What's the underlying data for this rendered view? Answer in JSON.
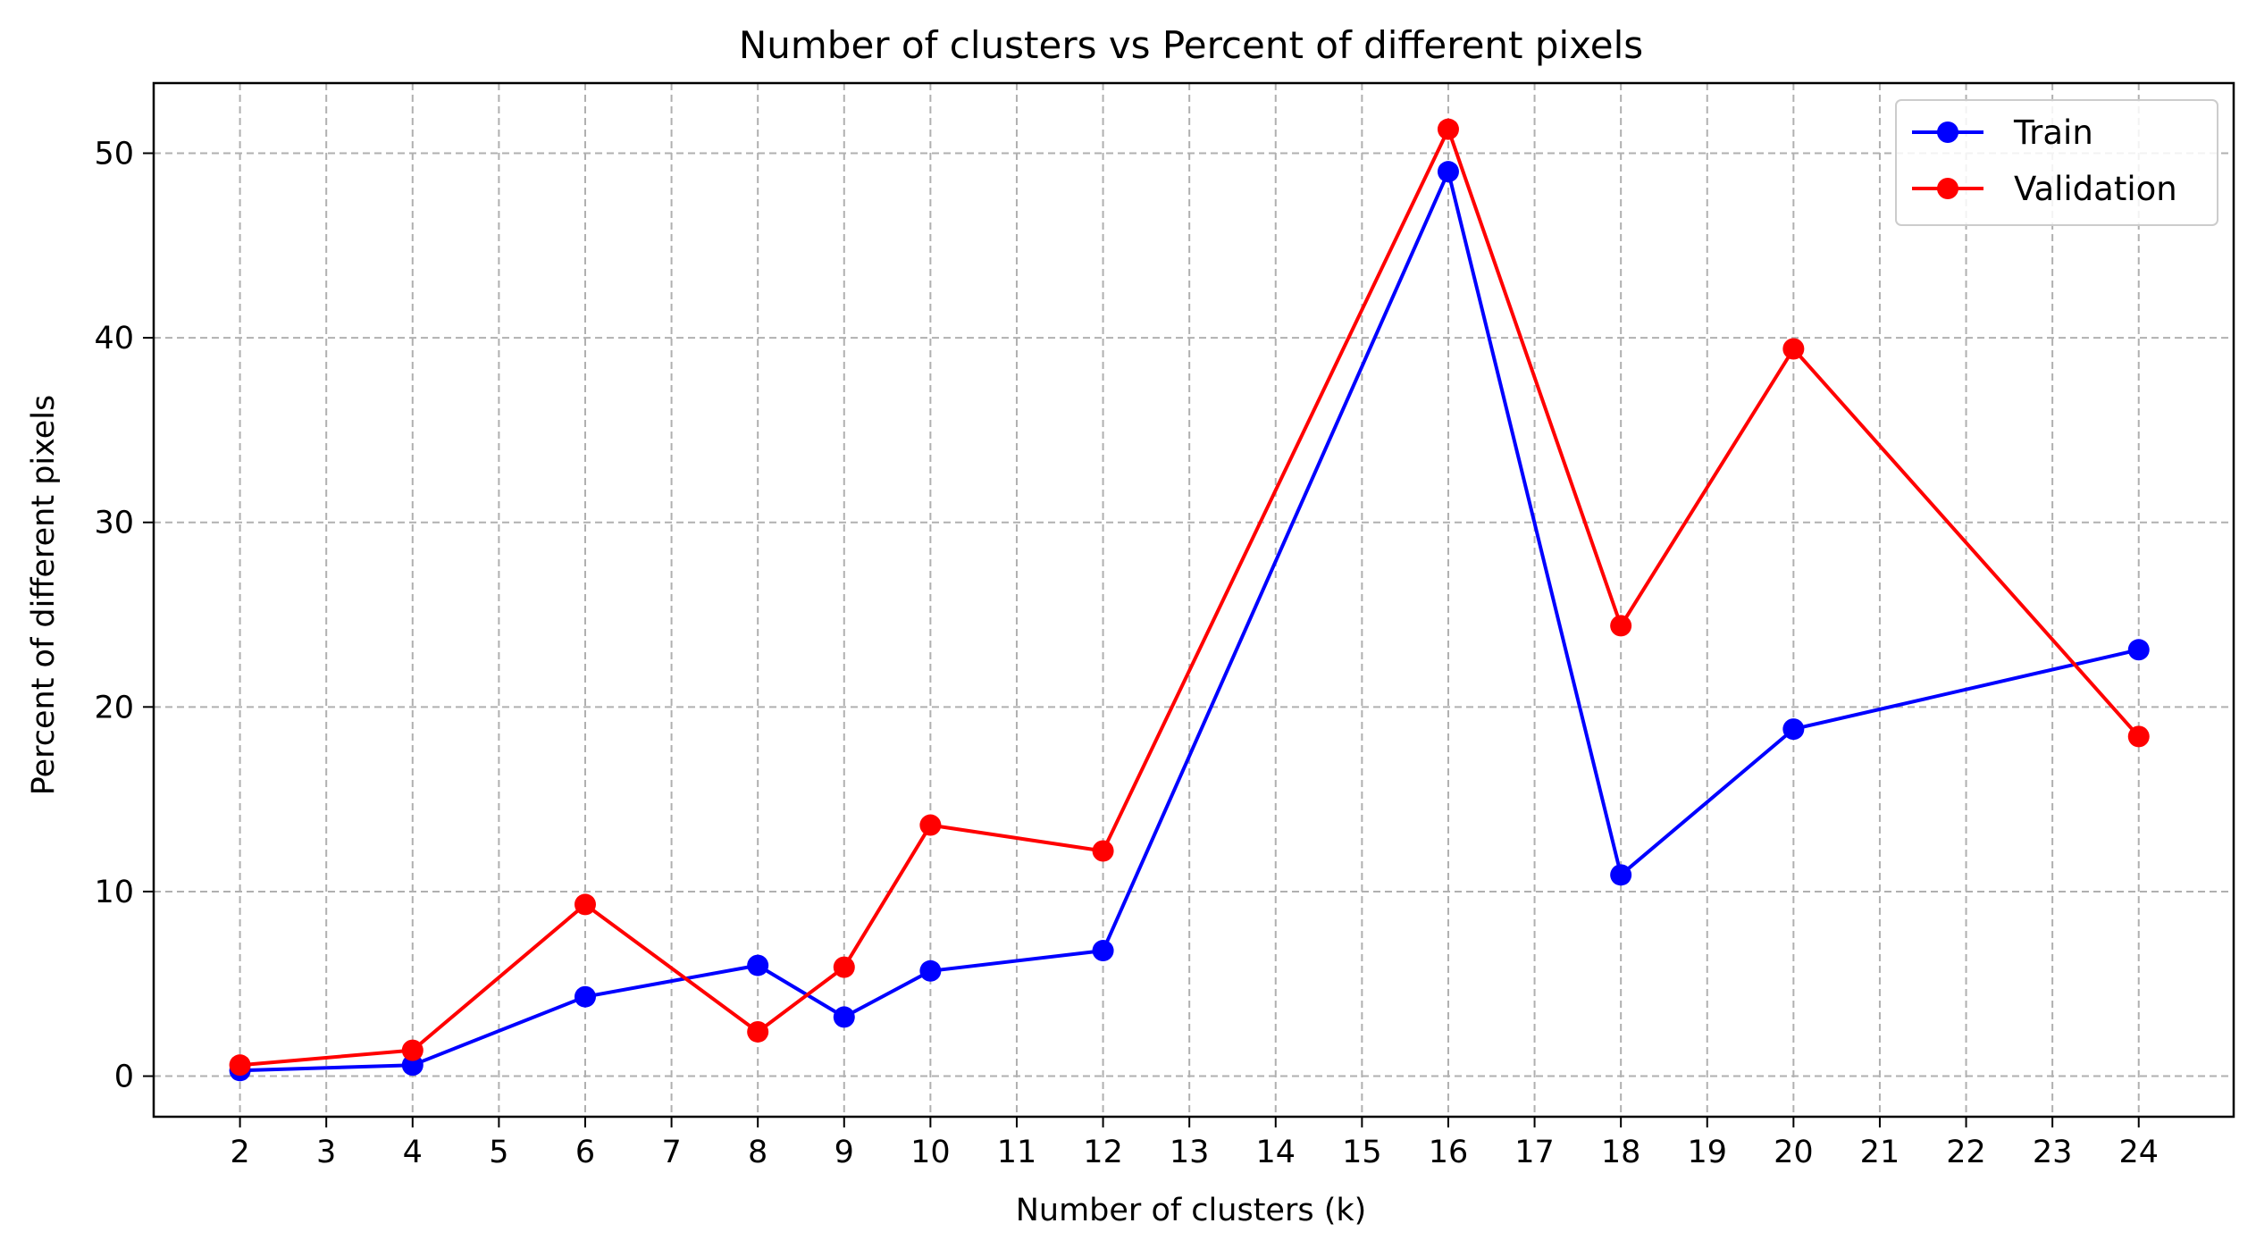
{
  "chart_data": {
    "type": "line",
    "title": "Number of clusters vs Percent of different pixels",
    "xlabel": "Number of clusters (k)",
    "ylabel": "Percent of different pixels",
    "x": [
      2,
      4,
      6,
      8,
      9,
      10,
      12,
      16,
      18,
      20,
      24
    ],
    "xticks": [
      2,
      3,
      4,
      5,
      6,
      7,
      8,
      9,
      10,
      11,
      12,
      13,
      14,
      15,
      16,
      17,
      18,
      19,
      20,
      21,
      22,
      23,
      24
    ],
    "yticks": [
      0,
      10,
      20,
      30,
      40,
      50
    ],
    "xlim": [
      1,
      25.1
    ],
    "ylim": [
      -2.2,
      53.8
    ],
    "grid": true,
    "legend_position": "top-right",
    "series": [
      {
        "name": "Train",
        "color": "#0000ff",
        "values": [
          0.3,
          0.6,
          4.3,
          6.0,
          3.2,
          5.7,
          6.8,
          49.0,
          10.9,
          18.8,
          23.1
        ]
      },
      {
        "name": "Validation",
        "color": "#ff0000",
        "values": [
          0.6,
          1.4,
          9.3,
          2.4,
          5.9,
          13.6,
          12.2,
          51.3,
          24.4,
          39.4,
          18.4
        ]
      }
    ]
  }
}
